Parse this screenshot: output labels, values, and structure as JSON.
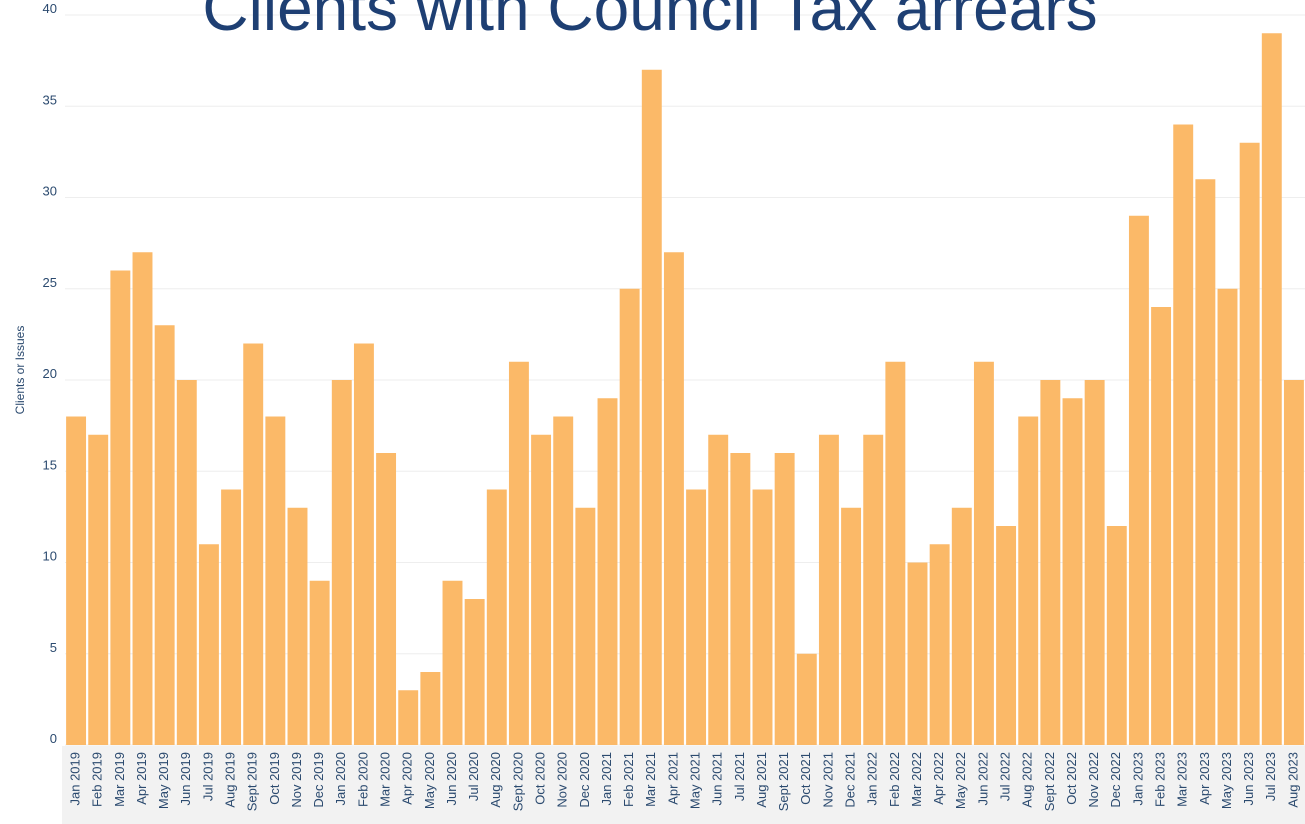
{
  "chart_data": {
    "type": "bar",
    "title": "Clients with Council Tax arrears",
    "y_label": "Clients or Issues",
    "categories": [
      "Jan 2019",
      "Feb 2019",
      "Mar 2019",
      "Apr 2019",
      "May 2019",
      "Jun 2019",
      "Jul 2019",
      "Aug 2019",
      "Sept 2019",
      "Oct 2019",
      "Nov 2019",
      "Dec 2019",
      "Jan 2020",
      "Feb 2020",
      "Mar 2020",
      "Apr 2020",
      "May 2020",
      "Jun 2020",
      "Jul 2020",
      "Aug 2020",
      "Sept 2020",
      "Oct 2020",
      "Nov 2020",
      "Dec 2020",
      "Jan 2021",
      "Feb 2021",
      "Mar 2021",
      "Apr 2021",
      "May 2021",
      "Jun 2021",
      "Jul 2021",
      "Aug 2021",
      "Sept 2021",
      "Oct 2021",
      "Nov 2021",
      "Dec 2021",
      "Jan 2022",
      "Feb 2022",
      "Mar 2022",
      "Apr 2022",
      "May 2022",
      "Jun 2022",
      "Jul 2022",
      "Aug 2022",
      "Sept 2022",
      "Oct 2022",
      "Nov 2022",
      "Dec 2022",
      "Jan 2023",
      "Feb 2023",
      "Mar 2023",
      "Apr 2023",
      "May 2023",
      "Jun 2023",
      "Jul 2023",
      "Aug 2023"
    ],
    "values": [
      18,
      17,
      26,
      27,
      23,
      20,
      11,
      14,
      22,
      18,
      13,
      9,
      20,
      22,
      16,
      3,
      4,
      9,
      8,
      14,
      21,
      17,
      18,
      13,
      19,
      25,
      37,
      27,
      14,
      17,
      16,
      14,
      16,
      5,
      17,
      13,
      17,
      21,
      10,
      11,
      13,
      21,
      12,
      18,
      20,
      19,
      20,
      12,
      29,
      24,
      34,
      31,
      25,
      33,
      39,
      20
    ],
    "color": "#fbb968",
    "ylim": [
      0,
      40
    ],
    "yticks": [
      0,
      5,
      10,
      15,
      20,
      25,
      30,
      35,
      40
    ],
    "grid": true
  }
}
